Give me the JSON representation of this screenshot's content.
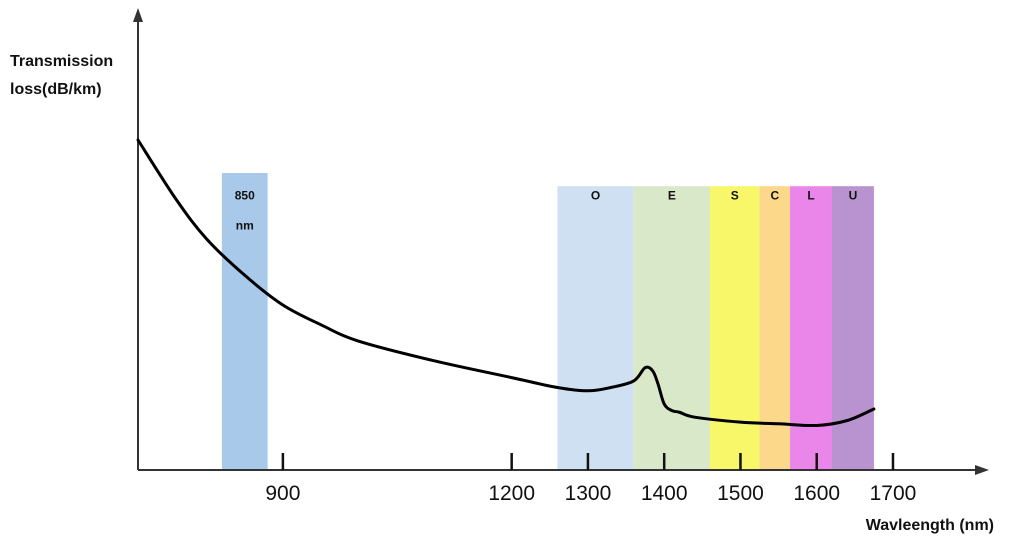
{
  "chart_data": {
    "type": "line",
    "ylabel_lines": [
      "Transmission",
      "loss(dB/km)"
    ],
    "xlabel": "Wavleength (nm)",
    "x_ticks": [
      {
        "value": 900,
        "label": "900"
      },
      {
        "value": 1200,
        "label": "1200"
      },
      {
        "value": 1300,
        "label": "1300"
      },
      {
        "value": 1400,
        "label": "1400"
      },
      {
        "value": 1500,
        "label": "1500"
      },
      {
        "value": 1600,
        "label": "1600"
      },
      {
        "value": 1700,
        "label": "1700"
      }
    ],
    "xlim": [
      710,
      1860
    ],
    "ylim": [
      0,
      1
    ],
    "bands": [
      {
        "label": "850",
        "label2": "nm",
        "x0": 820,
        "x1": 880,
        "y_top": 0.9,
        "color": "#a9c9ea"
      },
      {
        "label": "O",
        "x0": 1260,
        "x1": 1360,
        "y_top": 0.86,
        "color": "#cfe0f2"
      },
      {
        "label": "E",
        "x0": 1360,
        "x1": 1460,
        "y_top": 0.86,
        "color": "#d8e8c8"
      },
      {
        "label": "S",
        "x0": 1460,
        "x1": 1525,
        "y_top": 0.86,
        "color": "#f8f76a"
      },
      {
        "label": "C",
        "x0": 1525,
        "x1": 1565,
        "y_top": 0.86,
        "color": "#fcd88a"
      },
      {
        "label": "L",
        "x0": 1565,
        "x1": 1620,
        "y_top": 0.86,
        "color": "#ea86ea"
      },
      {
        "label": "U",
        "x0": 1620,
        "x1": 1675,
        "y_top": 0.86,
        "color": "#b893cf"
      }
    ],
    "series": [
      {
        "x": [
          710,
          760,
          800,
          850,
          900,
          950,
          1000,
          1100,
          1200,
          1260,
          1300,
          1330,
          1360,
          1375,
          1385,
          1392,
          1400,
          1410,
          1420,
          1440,
          1500,
          1550,
          1600,
          1640,
          1675
        ],
        "y": [
          1.0,
          0.82,
          0.7,
          0.59,
          0.5,
          0.44,
          0.39,
          0.33,
          0.28,
          0.25,
          0.24,
          0.25,
          0.27,
          0.31,
          0.3,
          0.26,
          0.2,
          0.18,
          0.175,
          0.16,
          0.145,
          0.14,
          0.135,
          0.15,
          0.185
        ],
        "color": "#000000"
      }
    ],
    "band_label_y": 0.82,
    "grid": false,
    "legend": "none"
  }
}
